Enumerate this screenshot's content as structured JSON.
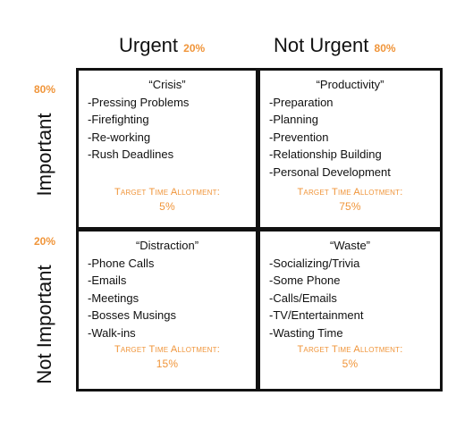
{
  "columns": [
    {
      "label": "Urgent",
      "pct": "20%"
    },
    {
      "label": "Not Urgent",
      "pct": "80%"
    }
  ],
  "rows": [
    {
      "label": "Important",
      "pct": "80%"
    },
    {
      "label": "Not Important",
      "pct": "20%"
    }
  ],
  "target_label": "Target Time Allotment:",
  "quadrants": [
    {
      "title": "“Crisis”",
      "items": [
        "-Pressing Problems",
        "-Firefighting",
        "-Re-working",
        "-Rush Deadlines"
      ],
      "target": "5%"
    },
    {
      "title": "“Productivity”",
      "items": [
        "-Preparation",
        "-Planning",
        "-Prevention",
        "-Relationship Building",
        "-Personal Development"
      ],
      "target": "75%"
    },
    {
      "title": "“Distraction”",
      "items": [
        "-Phone Calls",
        "-Emails",
        "-Meetings",
        "-Bosses Musings",
        "-Walk-ins"
      ],
      "target": "15%"
    },
    {
      "title": "“Waste”",
      "items": [
        "-Socializing/Trivia",
        "-Some Phone",
        "-Calls/Emails",
        "-TV/Entertainment",
        "-Wasting Time"
      ],
      "target": "5%"
    }
  ],
  "colors": {
    "accent": "#f0953a",
    "line": "#111111"
  }
}
